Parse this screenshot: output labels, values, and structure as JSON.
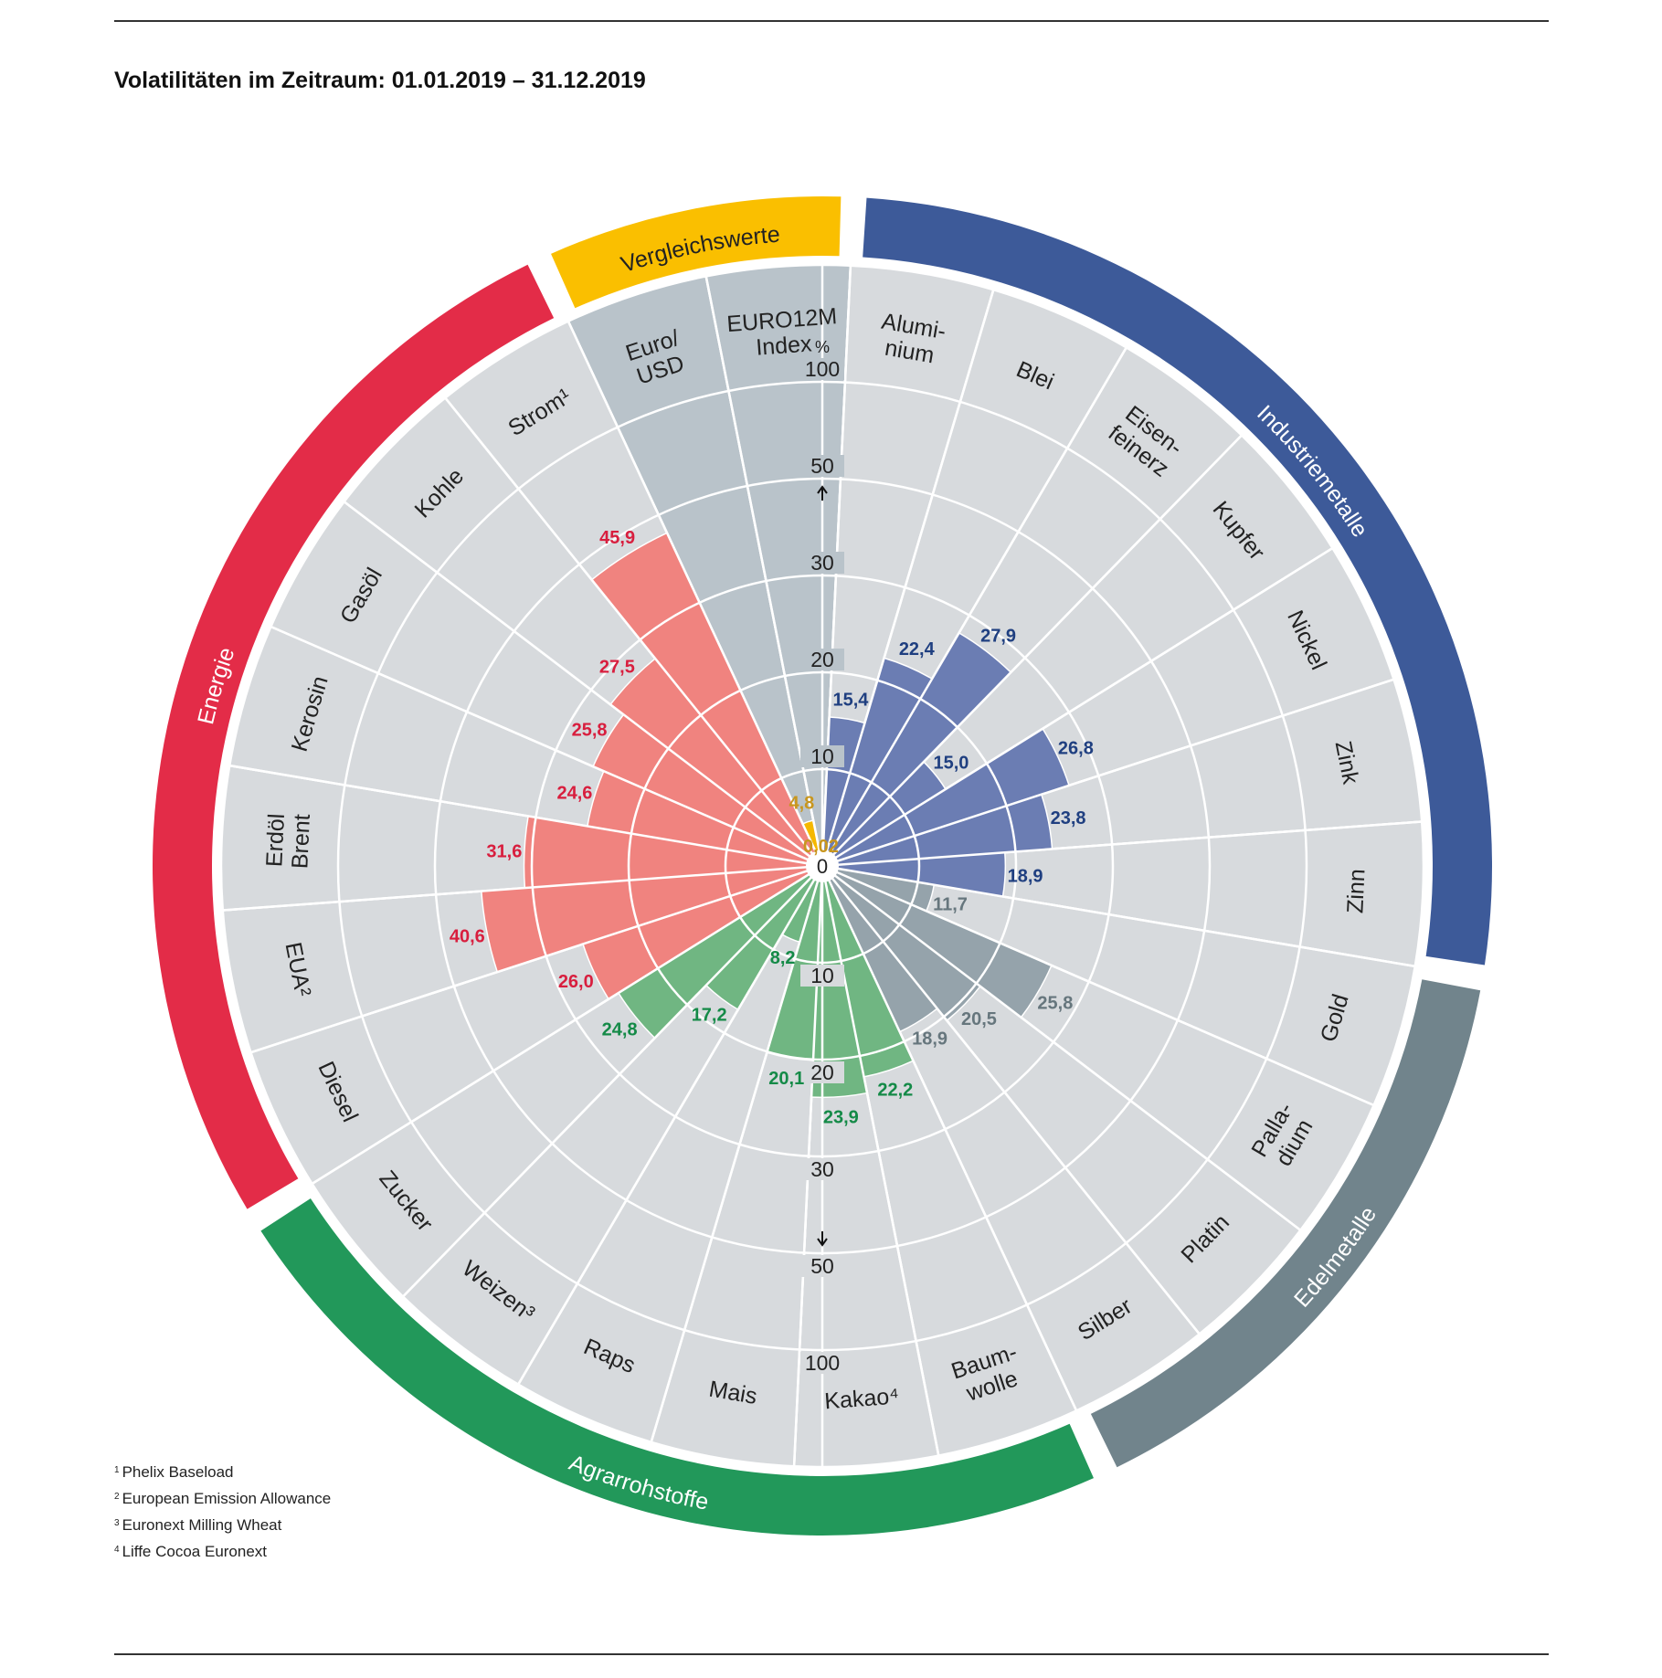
{
  "title": "Volatilitäten im Zeitraum: 01.01.2019 – 31.12.2019",
  "footnotes": [
    {
      "mark": "1",
      "text": "Phelix Baseload"
    },
    {
      "mark": "2",
      "text": "European Emission Allowance"
    },
    {
      "mark": "3",
      "text": "Euronext Milling Wheat"
    },
    {
      "mark": "4",
      "text": "Liffe Cocoa Euronext"
    }
  ],
  "chart_data": {
    "type": "polar-bar",
    "unit": "%",
    "scale_ticks": [
      "0",
      "10",
      "20",
      "30",
      "50",
      "100"
    ],
    "scale_values": [
      0,
      10,
      20,
      30,
      50,
      100
    ],
    "center_label": "0",
    "groups": [
      {
        "name": "Vergleichswerte",
        "color": "#F5B800",
        "band_color": "#FABF00",
        "bar_color": "#F5B800",
        "value_color": "#C8961E",
        "segment_color": "#B9C3CA",
        "items": [
          {
            "label": "Euro/\nUSD",
            "value": 4.8,
            "value_label": "4,8"
          },
          {
            "label": "EURO12M\nIndex",
            "value": 0.02,
            "value_label": "0,02"
          }
        ]
      },
      {
        "name": "Industriemetalle",
        "color": "#3D5A99",
        "band_color": "#3D5A99",
        "bar_color": "#6B7DB3",
        "value_color": "#1F3F80",
        "segment_color": "#D7DADD",
        "items": [
          {
            "label": "Alumi-\nnium",
            "value": 15.4,
            "value_label": "15,4"
          },
          {
            "label": "Blei",
            "value": 22.4,
            "value_label": "22,4"
          },
          {
            "label": "Eisen-\nfeinerz",
            "value": 27.9,
            "value_label": "27,9"
          },
          {
            "label": "Kupfer",
            "value": 15.0,
            "value_label": "15,0"
          },
          {
            "label": "Nickel",
            "value": 26.8,
            "value_label": "26,8"
          },
          {
            "label": "Zink",
            "value": 23.8,
            "value_label": "23,8"
          },
          {
            "label": "Zinn",
            "value": 18.9,
            "value_label": "18,9"
          }
        ]
      },
      {
        "name": "Edelmetalle",
        "color": "#71848C",
        "band_color": "#71848C",
        "bar_color": "#95A3AB",
        "value_color": "#66767D",
        "segment_color": "#D7DADD",
        "items": [
          {
            "label": "Gold",
            "value": 11.7,
            "value_label": "11,7"
          },
          {
            "label": "Palla-\ndium",
            "value": 25.8,
            "value_label": "25,8"
          },
          {
            "label": "Platin",
            "value": 20.5,
            "value_label": "20,5"
          },
          {
            "label": "Silber",
            "value": 18.9,
            "value_label": "18,9"
          }
        ]
      },
      {
        "name": "Agrarrohstoffe",
        "color": "#22985A",
        "band_color": "#22985A",
        "bar_color": "#70B682",
        "value_color": "#148A47",
        "segment_color": "#D7DADD",
        "items": [
          {
            "label": "Baum-\nwolle",
            "value": 22.2,
            "value_label": "22,2"
          },
          {
            "label": "Kakao⁴",
            "value": 23.9,
            "value_label": "23,9"
          },
          {
            "label": "Mais",
            "value": 20.1,
            "value_label": "20,1"
          },
          {
            "label": "Raps",
            "value": 8.2,
            "value_label": "8,2"
          },
          {
            "label": "Weizen³",
            "value": 17.2,
            "value_label": "17,2"
          },
          {
            "label": "Zucker",
            "value": 24.8,
            "value_label": "24,8"
          }
        ]
      },
      {
        "name": "Energie",
        "color": "#E32C48",
        "band_color": "#E32C48",
        "bar_color": "#F0837F",
        "value_color": "#D81E3E",
        "segment_color": "#D7DADD",
        "items": [
          {
            "label": "Diesel",
            "value": 26.0,
            "value_label": "26,0"
          },
          {
            "label": "EUA²",
            "value": 40.6,
            "value_label": "40,6"
          },
          {
            "label": "Erdöl\nBrent",
            "value": 31.6,
            "value_label": "31,6"
          },
          {
            "label": "Kerosin",
            "value": 24.6,
            "value_label": "24,6"
          },
          {
            "label": "Gasöl",
            "value": 25.8,
            "value_label": "25,8"
          },
          {
            "label": "Kohle",
            "value": 27.5,
            "value_label": "27,5"
          },
          {
            "label": "Strom¹",
            "value": 45.9,
            "value_label": "45,9"
          }
        ]
      }
    ],
    "grid": true,
    "legend": "outer-ring"
  }
}
